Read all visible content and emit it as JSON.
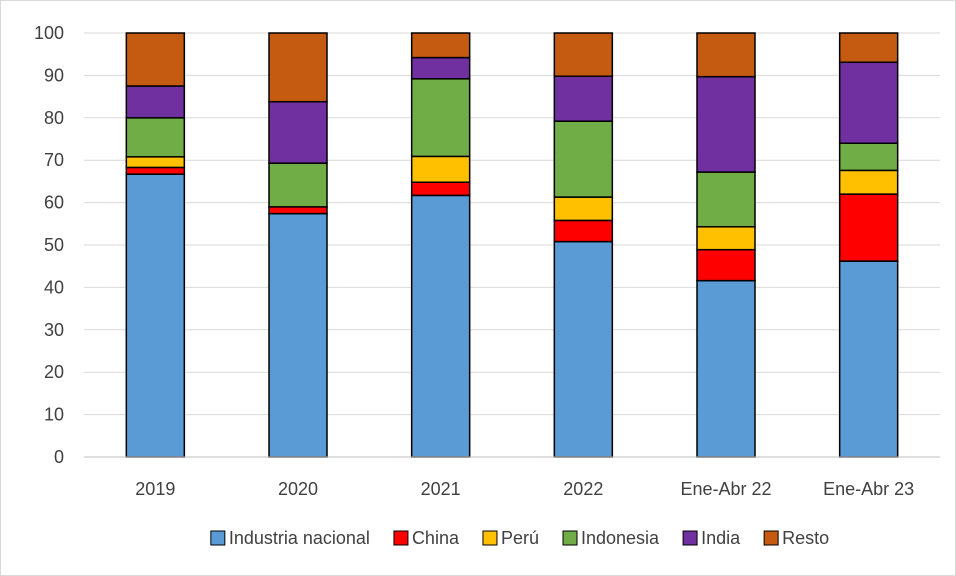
{
  "chart_data": {
    "type": "bar",
    "stacked": true,
    "title": "",
    "xlabel": "",
    "ylabel": "",
    "ylim": [
      0,
      100
    ],
    "yticks": [
      0,
      10,
      20,
      30,
      40,
      50,
      60,
      70,
      80,
      90,
      100
    ],
    "grid": "horizontal",
    "legend_position": "bottom",
    "categories": [
      "2019",
      "2020",
      "2021",
      "2022",
      "Ene-Abr 22",
      "Ene-Abr 23"
    ],
    "series": [
      {
        "name": "Industria nacional",
        "color": "#5b9bd5",
        "values": [
          66.7,
          57.4,
          61.7,
          50.8,
          41.6,
          46.2
        ]
      },
      {
        "name": "China",
        "color": "#ff0000",
        "values": [
          1.6,
          1.6,
          3.1,
          5.0,
          7.3,
          15.8
        ]
      },
      {
        "name": "Perú",
        "color": "#ffc000",
        "values": [
          2.5,
          0.0,
          6.1,
          5.5,
          5.4,
          5.6
        ]
      },
      {
        "name": "Indonesia",
        "color": "#70ad47",
        "values": [
          9.2,
          10.3,
          18.3,
          17.9,
          12.9,
          6.4
        ]
      },
      {
        "name": "India",
        "color": "#7030a0",
        "values": [
          7.5,
          14.5,
          5.0,
          10.6,
          22.5,
          19.1
        ]
      },
      {
        "name": "Resto",
        "color": "#c55a11",
        "values": [
          12.5,
          16.2,
          5.8,
          10.2,
          10.3,
          6.9
        ]
      }
    ]
  }
}
